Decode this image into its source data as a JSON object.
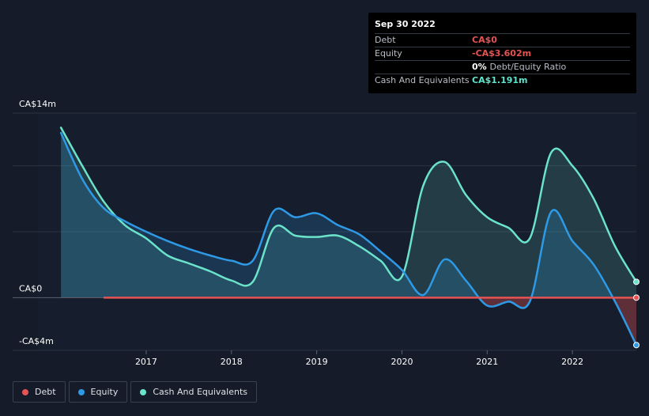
{
  "tooltip": {
    "date": "Sep 30 2022",
    "rows": [
      {
        "name": "Debt",
        "value": "CA$0",
        "color": "#e55353"
      },
      {
        "name": "Equity",
        "value": "-CA$3.602m",
        "color": "#e55353"
      },
      {
        "name": "",
        "value": "0%",
        "sub": "Debt/Equity Ratio",
        "color": "#ffffff"
      },
      {
        "name": "Cash And Equivalents",
        "value": "CA$1.191m",
        "color": "#5fe5cd"
      }
    ]
  },
  "legend": [
    {
      "label": "Debt",
      "color": "#e55353"
    },
    {
      "label": "Equity",
      "color": "#2e9ae6"
    },
    {
      "label": "Cash And Equivalents",
      "color": "#6be3cb"
    }
  ],
  "chart_data": {
    "type": "area",
    "y_axis_labels": [
      "CA$14m",
      "CA$0",
      "-CA$4m"
    ],
    "ylim": [
      -4,
      14
    ],
    "x_tick_labels": [
      "2017",
      "2018",
      "2019",
      "2020",
      "2021",
      "2022"
    ],
    "x_ticks": [
      2017,
      2018,
      2019,
      2020,
      2021,
      2022
    ],
    "xlim": [
      2015.73,
      2022.75
    ],
    "series": [
      {
        "name": "Debt",
        "color": "#e55353",
        "x": [
          2016.5,
          2022.75
        ],
        "values": [
          0,
          0
        ]
      },
      {
        "name": "Equity",
        "color": "#2e9ae6",
        "x": [
          2016.0,
          2016.25,
          2016.5,
          2016.75,
          2017.0,
          2017.25,
          2017.5,
          2017.75,
          2018.0,
          2018.25,
          2018.5,
          2018.75,
          2019.0,
          2019.25,
          2019.5,
          2019.75,
          2020.0,
          2020.25,
          2020.5,
          2020.75,
          2021.0,
          2021.25,
          2021.5,
          2021.75,
          2022.0,
          2022.25,
          2022.5,
          2022.75
        ],
        "values": [
          12.5,
          9.0,
          6.8,
          5.8,
          5.0,
          4.3,
          3.7,
          3.2,
          2.8,
          2.8,
          6.6,
          6.1,
          6.4,
          5.5,
          4.8,
          3.5,
          2.1,
          0.2,
          2.9,
          1.3,
          -0.6,
          -0.3,
          -0.3,
          6.5,
          4.3,
          2.5,
          -0.3,
          -3.6
        ]
      },
      {
        "name": "Cash And Equivalents",
        "color": "#6be3cb",
        "x": [
          2016.0,
          2016.25,
          2016.5,
          2016.75,
          2017.0,
          2017.25,
          2017.5,
          2017.75,
          2018.0,
          2018.25,
          2018.5,
          2018.75,
          2019.0,
          2019.25,
          2019.5,
          2019.75,
          2020.0,
          2020.25,
          2020.5,
          2020.75,
          2021.0,
          2021.25,
          2021.5,
          2021.75,
          2022.0,
          2022.25,
          2022.5,
          2022.75
        ],
        "values": [
          12.9,
          10.0,
          7.3,
          5.5,
          4.5,
          3.2,
          2.6,
          2.0,
          1.3,
          1.2,
          5.3,
          4.7,
          4.6,
          4.7,
          3.9,
          2.8,
          1.6,
          8.5,
          10.3,
          7.8,
          6.1,
          5.3,
          4.5,
          11.0,
          10.0,
          7.5,
          3.9,
          1.2
        ]
      }
    ]
  }
}
